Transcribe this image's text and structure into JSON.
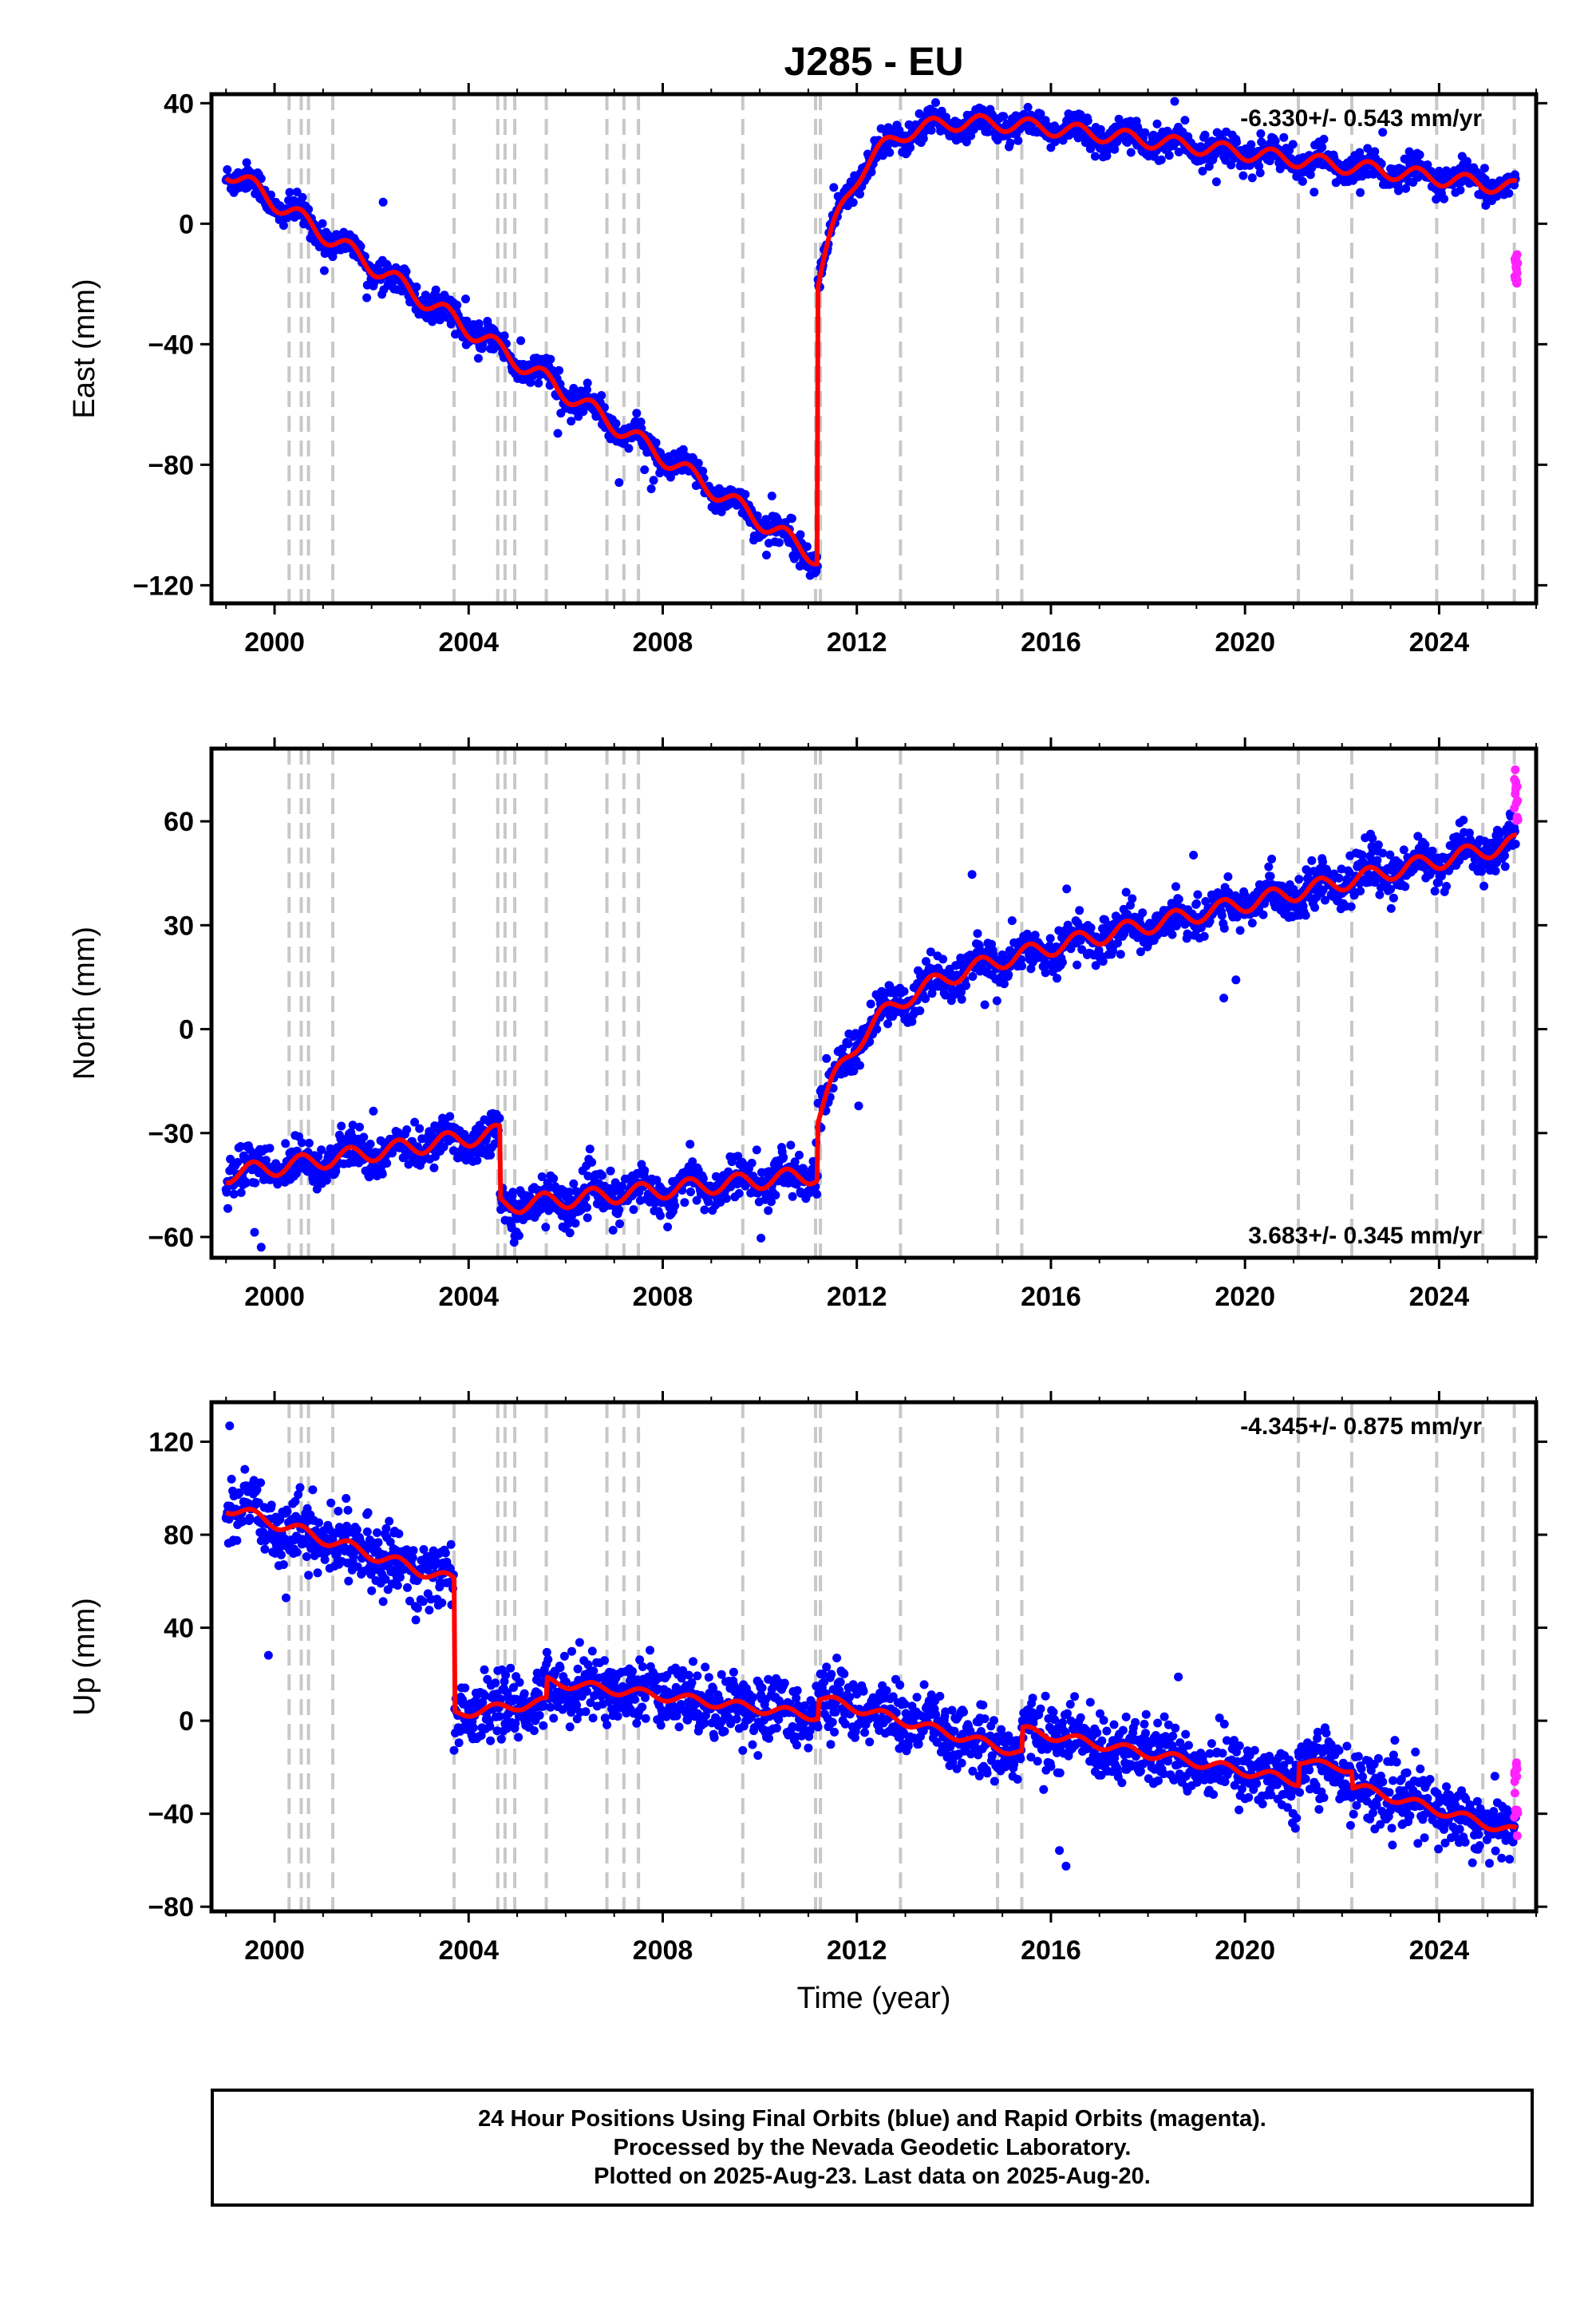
{
  "title": "J285 - EU",
  "xlabel": "Time (year)",
  "footer_lines": [
    "24 Hour Positions Using Final Orbits (blue) and Rapid Orbits (magenta).",
    "Processed by the Nevada Geodetic Laboratory.",
    "Plotted on 2025-Aug-23. Last data on 2025-Aug-20."
  ],
  "colors": {
    "final_points": "#0000ff",
    "rapid_points": "#ff22ff",
    "model_line": "#ff0000",
    "event_lines": "#c8c8c8"
  },
  "chart_data": [
    {
      "type": "scatter",
      "panel": "east",
      "ylabel": "East (mm)",
      "rate_label": "-6.330+/- 0.543 mm/yr",
      "rate_position": "top-right",
      "xlim": [
        1998.7,
        2026.0
      ],
      "ylim": [
        -126,
        43
      ],
      "xticks": [
        2000,
        2004,
        2008,
        2012,
        2016,
        2020,
        2024
      ],
      "yticks": [
        -120,
        -80,
        -40,
        0,
        40
      ],
      "event_lines": [
        2000.3,
        2000.55,
        2000.7,
        2001.2,
        2003.7,
        2004.6,
        2004.75,
        2004.95,
        2005.6,
        2006.85,
        2007.2,
        2007.5,
        2009.65,
        2011.15,
        2011.25,
        2012.9,
        2014.9,
        2015.4,
        2021.1,
        2022.2,
        2023.95,
        2024.9,
        2025.55
      ],
      "model_segments": [
        {
          "t0": 1999.0,
          "t1": 2011.19,
          "v0": 18.0,
          "v1": -111.0,
          "amp": 3.0
        },
        {
          "t0": 2011.19,
          "t1": 2025.6,
          "v0": -20.0,
          "v1": -17.0,
          "amp": 2.5,
          "transient": {
            "A": 62,
            "tau": 0.9,
            "rate": -2.1
          }
        }
      ],
      "noise_sd": 2.3,
      "rapid_range": [
        -20,
        -10
      ]
    },
    {
      "type": "scatter",
      "panel": "north",
      "ylabel": "North (mm)",
      "rate_label": "3.683+/- 0.345 mm/yr",
      "rate_position": "bottom-right",
      "xlim": [
        1998.7,
        2026.0
      ],
      "ylim": [
        -66,
        81
      ],
      "xticks": [
        2000,
        2004,
        2008,
        2012,
        2016,
        2020,
        2024
      ],
      "yticks": [
        -60,
        -30,
        0,
        30,
        60
      ],
      "event_lines": [
        2000.3,
        2000.55,
        2000.7,
        2001.2,
        2003.7,
        2004.6,
        2004.75,
        2004.95,
        2005.6,
        2006.85,
        2007.2,
        2007.5,
        2009.65,
        2011.15,
        2011.25,
        2012.9,
        2014.9,
        2015.4,
        2021.1,
        2022.2,
        2023.95,
        2024.9,
        2025.55
      ],
      "model_segments": [
        {
          "t0": 1999.0,
          "t1": 2004.65,
          "v0": -42.0,
          "v1": -30.0,
          "amp": 2.5
        },
        {
          "t0": 2004.65,
          "t1": 2011.19,
          "v0": -51.0,
          "v1": -42.0,
          "amp": 2.5
        },
        {
          "t0": 2011.19,
          "t1": 2025.6,
          "v0": -26.0,
          "v1": 65.0,
          "amp": 2.5,
          "transient": {
            "A": 35,
            "tau": 1.0,
            "rate": 3.1
          }
        }
      ],
      "noise_sd": 3.0,
      "rapid_range": [
        60,
        75
      ]
    },
    {
      "type": "scatter",
      "panel": "up",
      "ylabel": "Up (mm)",
      "rate_label": "-4.345+/- 0.875 mm/yr",
      "rate_position": "top-right",
      "xlim": [
        1998.7,
        2026.0
      ],
      "ylim": [
        -82,
        137
      ],
      "xticks": [
        2000,
        2004,
        2008,
        2012,
        2016,
        2020,
        2024
      ],
      "yticks": [
        -80,
        -40,
        0,
        40,
        80,
        120
      ],
      "event_lines": [
        2000.3,
        2000.55,
        2000.7,
        2001.2,
        2003.7,
        2004.6,
        2004.75,
        2004.95,
        2005.6,
        2006.85,
        2007.2,
        2007.5,
        2009.65,
        2011.15,
        2011.25,
        2012.9,
        2014.9,
        2015.4,
        2021.1,
        2022.2,
        2023.95,
        2024.9,
        2025.55
      ],
      "model_segments": [
        {
          "t0": 1999.0,
          "t1": 2003.7,
          "v0": 92.0,
          "v1": 60.0,
          "amp": 2.5
        },
        {
          "t0": 2003.7,
          "t1": 2005.6,
          "v0": 3.0,
          "v1": 8.0,
          "amp": 2.0
        },
        {
          "t0": 2005.6,
          "t1": 2011.2,
          "v0": 17.0,
          "v1": 2.0,
          "amp": 2.0
        },
        {
          "t0": 2011.2,
          "t1": 2015.4,
          "v0": 10.0,
          "v1": -14.0,
          "amp": 2.0
        },
        {
          "t0": 2015.4,
          "t1": 2021.1,
          "v0": -4.0,
          "v1": -26.0,
          "amp": 2.0
        },
        {
          "t0": 2021.1,
          "t1": 2022.2,
          "v0": -17.0,
          "v1": -21.0,
          "amp": 1.5
        },
        {
          "t0": 2022.2,
          "t1": 2025.6,
          "v0": -28.0,
          "v1": -48.0,
          "amp": 2.0
        }
      ],
      "noise_sd": 7.0,
      "rapid_range": [
        -50,
        -18
      ]
    }
  ]
}
